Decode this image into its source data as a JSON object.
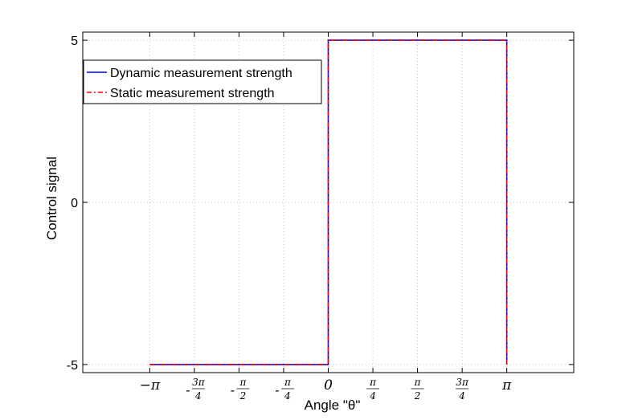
{
  "chart_data": {
    "type": "line",
    "xlabel": "Angle \"θ\"",
    "ylabel": "Control signal",
    "xlim": [
      -4.32,
      4.32
    ],
    "ylim": [
      -5.25,
      5.25
    ],
    "grid": true,
    "legend_position": "top-left",
    "x_ticks": [
      {
        "value": -3.14159,
        "sign": "−",
        "num": "π",
        "den": ""
      },
      {
        "value": -2.35619,
        "sign": "-",
        "num": "3π",
        "den": "4"
      },
      {
        "value": -1.5708,
        "sign": "-",
        "num": "π",
        "den": "2"
      },
      {
        "value": -0.7854,
        "sign": "-",
        "num": "π",
        "den": "4"
      },
      {
        "value": 0,
        "sign": "",
        "num": "0",
        "den": ""
      },
      {
        "value": 0.7854,
        "sign": "",
        "num": "π",
        "den": "4"
      },
      {
        "value": 1.5708,
        "sign": "",
        "num": "π",
        "den": "2"
      },
      {
        "value": 2.35619,
        "sign": "",
        "num": "3π",
        "den": "4"
      },
      {
        "value": 3.14159,
        "sign": "",
        "num": "π",
        "den": ""
      }
    ],
    "y_ticks": [
      {
        "value": -5,
        "label": "-5"
      },
      {
        "value": 0,
        "label": "0"
      },
      {
        "value": 5,
        "label": "5"
      }
    ],
    "series": [
      {
        "name": "Dynamic measurement strength",
        "color": "#0000ff",
        "style": "solid",
        "x": [
          -3.14159,
          0,
          0,
          3.14159,
          3.14159
        ],
        "y": [
          -5,
          -5,
          5,
          5,
          -5
        ]
      },
      {
        "name": "Static measurement strength",
        "color": "#ff0000",
        "style": "dashdot",
        "x": [
          -3.14159,
          0,
          0,
          3.14159,
          3.14159
        ],
        "y": [
          -5,
          -5,
          5,
          5,
          -5
        ]
      }
    ]
  }
}
